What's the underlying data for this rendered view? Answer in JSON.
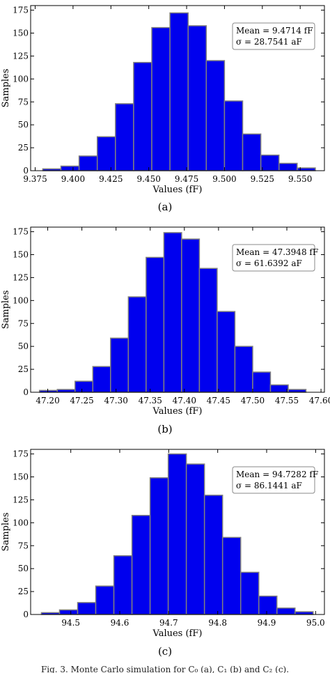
{
  "chart_data": [
    {
      "type": "bar",
      "bin_edges": [
        9.38,
        9.392,
        9.404,
        9.416,
        9.428,
        9.44,
        9.452,
        9.464,
        9.476,
        9.488,
        9.5,
        9.512,
        9.524,
        9.536,
        9.548,
        9.56
      ],
      "values": [
        2,
        5,
        16,
        37,
        73,
        118,
        156,
        172,
        158,
        120,
        76,
        40,
        17,
        8,
        3
      ],
      "xticks": [
        "9.375",
        "9.400",
        "9.425",
        "9.450",
        "9.475",
        "9.500",
        "9.525",
        "9.550"
      ],
      "xtick_values": [
        9.375,
        9.4,
        9.425,
        9.45,
        9.475,
        9.5,
        9.525,
        9.55
      ],
      "yticks": [
        "0",
        "25",
        "50",
        "75",
        "100",
        "125",
        "150",
        "175"
      ],
      "ytick_values": [
        0,
        25,
        50,
        75,
        100,
        125,
        150,
        175
      ],
      "xlim": [
        9.372,
        9.566
      ],
      "ylim": [
        0,
        180
      ],
      "xlabel": "Values (fF)",
      "ylabel": "Samples",
      "annotation": [
        "Mean = 9.4714 fF",
        "σ = 28.7541 aF"
      ],
      "legend_position": "top-right",
      "caption": "(a)",
      "bar_color": "#0000ee"
    },
    {
      "type": "bar",
      "bin_edges": [
        47.188,
        47.214,
        47.24,
        47.266,
        47.292,
        47.318,
        47.344,
        47.37,
        47.396,
        47.422,
        47.448,
        47.474,
        47.5,
        47.526,
        47.552,
        47.578
      ],
      "values": [
        2,
        3,
        12,
        28,
        59,
        104,
        147,
        174,
        167,
        135,
        88,
        50,
        22,
        8,
        3
      ],
      "xticks": [
        "47.20",
        "47.25",
        "47.30",
        "47.35",
        "47.40",
        "47.45",
        "47.50",
        "47.55",
        "47.60"
      ],
      "xtick_values": [
        47.2,
        47.25,
        47.3,
        47.35,
        47.4,
        47.45,
        47.5,
        47.55,
        47.6
      ],
      "yticks": [
        "0",
        "25",
        "50",
        "75",
        "100",
        "125",
        "150",
        "175"
      ],
      "ytick_values": [
        0,
        25,
        50,
        75,
        100,
        125,
        150,
        175
      ],
      "xlim": [
        47.175,
        47.605
      ],
      "ylim": [
        0,
        180
      ],
      "xlabel": "Values (fF)",
      "ylabel": "Samples",
      "annotation": [
        "Mean = 47.3948 fF",
        "σ = 61.6392 aF"
      ],
      "legend_position": "top-right",
      "caption": "(b)",
      "bar_color": "#0000ee"
    },
    {
      "type": "bar",
      "bin_edges": [
        94.44,
        94.477,
        94.514,
        94.551,
        94.588,
        94.625,
        94.662,
        94.699,
        94.736,
        94.773,
        94.81,
        94.847,
        94.884,
        94.921,
        94.958,
        94.995
      ],
      "values": [
        2,
        5,
        13,
        31,
        64,
        108,
        149,
        175,
        164,
        130,
        84,
        46,
        20,
        7,
        3
      ],
      "xticks": [
        "94.5",
        "94.6",
        "94.7",
        "94.8",
        "94.9",
        "95.0"
      ],
      "xtick_values": [
        94.5,
        94.6,
        94.7,
        94.8,
        94.9,
        95.0
      ],
      "yticks": [
        "0",
        "25",
        "50",
        "75",
        "100",
        "125",
        "150",
        "175"
      ],
      "ytick_values": [
        0,
        25,
        50,
        75,
        100,
        125,
        150,
        175
      ],
      "xlim": [
        94.418,
        95.018
      ],
      "ylim": [
        0,
        180
      ],
      "xlabel": "Values (fF)",
      "ylabel": "Samples",
      "annotation": [
        "Mean = 94.7282 fF",
        "σ = 86.1441 aF"
      ],
      "legend_position": "top-right",
      "caption": "(c)",
      "bar_color": "#0000ee"
    }
  ],
  "figure_caption": "Fig. 3.  Monte Carlo simulation for C₀ (a), C₁ (b) and C₂ (c)."
}
